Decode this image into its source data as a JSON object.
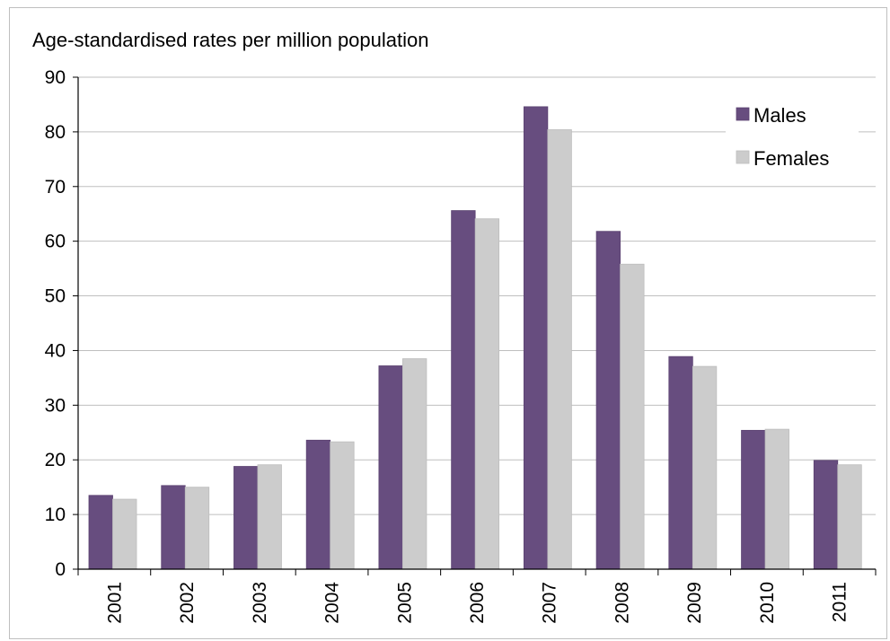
{
  "chart_data": {
    "type": "bar",
    "title": "",
    "ylabel": "Age-standardised rates per million population",
    "xlabel": "",
    "ylim": [
      0,
      90
    ],
    "yticks": [
      0,
      10,
      20,
      30,
      40,
      50,
      60,
      70,
      80,
      90
    ],
    "categories": [
      "2001",
      "2002",
      "2003",
      "2004",
      "2005",
      "2006",
      "2007",
      "2008",
      "2009",
      "2010",
      "2011"
    ],
    "series": [
      {
        "name": "Males",
        "color": "#674d7f",
        "values": [
          13.5,
          15.3,
          18.8,
          23.6,
          37.2,
          65.6,
          84.6,
          61.8,
          38.9,
          25.4,
          19.9
        ]
      },
      {
        "name": "Females",
        "color": "#cccccc",
        "values": [
          12.8,
          15.0,
          19.1,
          23.3,
          38.5,
          64.1,
          80.4,
          55.8,
          37.1,
          25.6,
          19.1
        ]
      }
    ],
    "grid": true,
    "legend_position": "top-right"
  }
}
